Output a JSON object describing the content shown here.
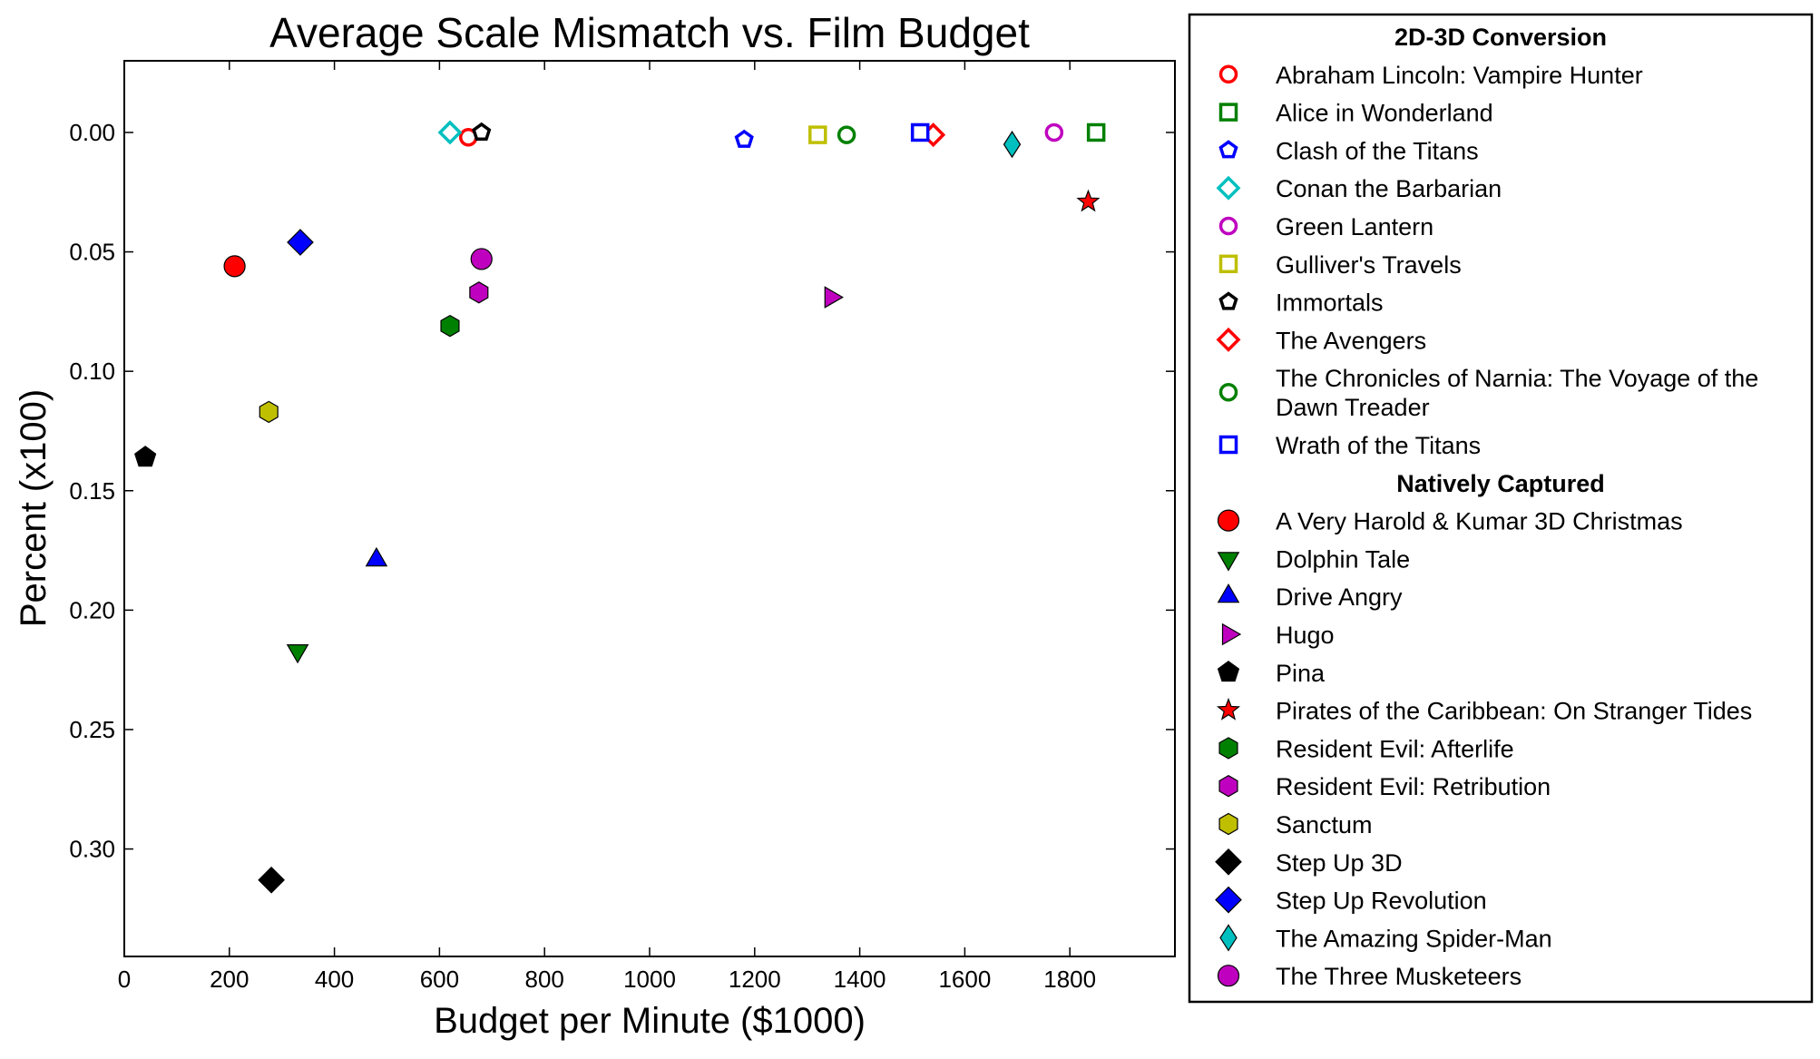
{
  "chart_data": {
    "type": "scatter",
    "title": "Average Scale Mismatch vs. Film Budget",
    "xlabel": "Budget per Minute ($1000)",
    "ylabel": "Percent (x100)",
    "xlim": [
      0,
      2000
    ],
    "ylim": [
      0.345,
      -0.03
    ],
    "y_inverted": true,
    "grid": false,
    "legend_position": "outside-right",
    "x_ticks": [
      {
        "value": 0,
        "label": "0"
      },
      {
        "value": 200,
        "label": "200"
      },
      {
        "value": 400,
        "label": "400"
      },
      {
        "value": 600,
        "label": "600"
      },
      {
        "value": 800,
        "label": "800"
      },
      {
        "value": 1000,
        "label": "1000"
      },
      {
        "value": 1200,
        "label": "1200"
      },
      {
        "value": 1400,
        "label": "1400"
      },
      {
        "value": 1600,
        "label": "1600"
      },
      {
        "value": 1800,
        "label": "1800"
      }
    ],
    "y_ticks": [
      {
        "value": 0.0,
        "label": "0.00"
      },
      {
        "value": 0.05,
        "label": "0.05"
      },
      {
        "value": 0.1,
        "label": "0.10"
      },
      {
        "value": 0.15,
        "label": "0.15"
      },
      {
        "value": 0.2,
        "label": "0.20"
      },
      {
        "value": 0.25,
        "label": "0.25"
      },
      {
        "value": 0.3,
        "label": "0.30"
      }
    ],
    "groups": [
      {
        "name": "2D-3D Conversion",
        "filled": false,
        "series": [
          {
            "name": "Abraham Lincoln: Vampire Hunter",
            "marker": "circle",
            "color": "#ff0000",
            "points": [
              {
                "x": 655,
                "y": 0.002
              }
            ]
          },
          {
            "name": "Alice in Wonderland",
            "marker": "square",
            "color": "#008000",
            "points": [
              {
                "x": 1850,
                "y": 0.0
              }
            ]
          },
          {
            "name": "Clash of the Titans",
            "marker": "pentagon",
            "color": "#0000ff",
            "points": [
              {
                "x": 1180,
                "y": 0.003
              }
            ]
          },
          {
            "name": "Conan the Barbarian",
            "marker": "diamond",
            "color": "#00bfbf",
            "points": [
              {
                "x": 620,
                "y": 0.0
              }
            ]
          },
          {
            "name": "Green Lantern",
            "marker": "circle",
            "color": "#bf00bf",
            "points": [
              {
                "x": 1770,
                "y": 0.0
              }
            ]
          },
          {
            "name": "Gulliver's Travels",
            "marker": "square",
            "color": "#bfbf00",
            "points": [
              {
                "x": 1320,
                "y": 0.001
              }
            ]
          },
          {
            "name": "Immortals",
            "marker": "pentagon",
            "color": "#000000",
            "points": [
              {
                "x": 680,
                "y": 0.0
              }
            ]
          },
          {
            "name": "The Avengers",
            "marker": "diamond",
            "color": "#ff0000",
            "points": [
              {
                "x": 1540,
                "y": 0.001
              }
            ]
          },
          {
            "name": "The Chronicles of Narnia: The Voyage of the Dawn Treader",
            "marker": "circle",
            "color": "#008000",
            "points": [
              {
                "x": 1375,
                "y": 0.001
              }
            ]
          },
          {
            "name": "Wrath of the Titans",
            "marker": "square",
            "color": "#0000ff",
            "points": [
              {
                "x": 1515,
                "y": 0.0
              }
            ]
          }
        ]
      },
      {
        "name": "Natively Captured",
        "filled": true,
        "series": [
          {
            "name": "A Very Harold & Kumar 3D Christmas",
            "marker": "circle",
            "color": "#ff0000",
            "points": [
              {
                "x": 210,
                "y": 0.056
              }
            ]
          },
          {
            "name": "Dolphin Tale",
            "marker": "triangle-down",
            "color": "#008000",
            "points": [
              {
                "x": 330,
                "y": 0.217
              }
            ]
          },
          {
            "name": "Drive Angry",
            "marker": "triangle-up",
            "color": "#0000ff",
            "points": [
              {
                "x": 480,
                "y": 0.179
              }
            ]
          },
          {
            "name": "Hugo",
            "marker": "triangle-right",
            "color": "#bf00bf",
            "points": [
              {
                "x": 1345,
                "y": 0.069
              }
            ]
          },
          {
            "name": "Pina",
            "marker": "pentagon",
            "color": "#000000",
            "points": [
              {
                "x": 40,
                "y": 0.136
              }
            ]
          },
          {
            "name": "Pirates of the Caribbean: On Stranger Tides",
            "marker": "star",
            "color": "#ff0000",
            "points": [
              {
                "x": 1835,
                "y": 0.029
              }
            ]
          },
          {
            "name": "Resident Evil: Afterlife",
            "marker": "hexagon",
            "color": "#008000",
            "points": [
              {
                "x": 620,
                "y": 0.081
              }
            ]
          },
          {
            "name": "Resident Evil: Retribution",
            "marker": "hexagon",
            "color": "#bf00bf",
            "points": [
              {
                "x": 675,
                "y": 0.067
              }
            ]
          },
          {
            "name": "Sanctum",
            "marker": "hexagon",
            "color": "#bfbf00",
            "points": [
              {
                "x": 275,
                "y": 0.117
              }
            ]
          },
          {
            "name": "Step Up 3D",
            "marker": "diamond",
            "color": "#000000",
            "points": [
              {
                "x": 280,
                "y": 0.313
              }
            ]
          },
          {
            "name": "Step Up Revolution",
            "marker": "diamond",
            "color": "#0000ff",
            "points": [
              {
                "x": 335,
                "y": 0.046
              }
            ]
          },
          {
            "name": "The Amazing Spider-Man",
            "marker": "thin-diamond",
            "color": "#00bfbf",
            "points": [
              {
                "x": 1690,
                "y": 0.005
              }
            ]
          },
          {
            "name": "The Three Musketeers",
            "marker": "circle",
            "color": "#bf00bf",
            "points": [
              {
                "x": 680,
                "y": 0.053
              }
            ]
          }
        ]
      }
    ]
  }
}
